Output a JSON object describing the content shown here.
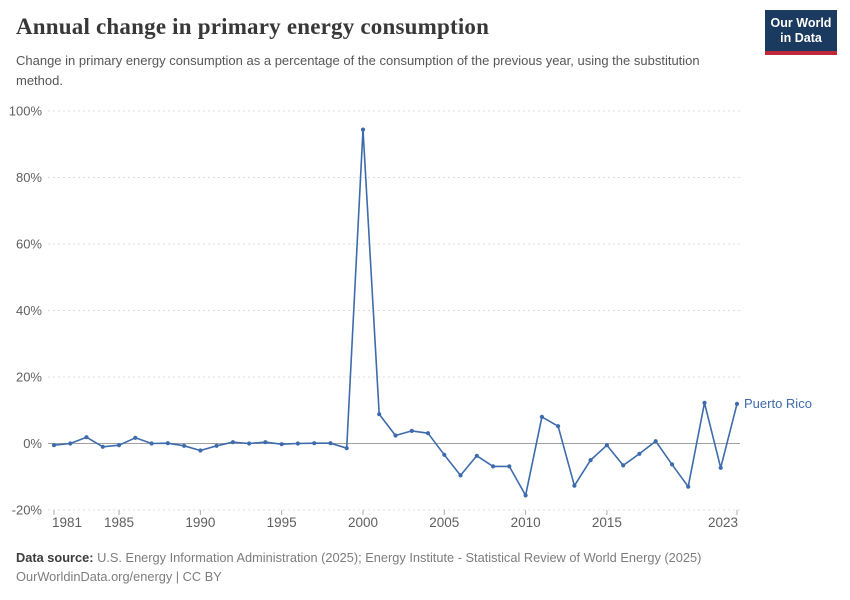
{
  "header": {
    "title": "Annual change in primary energy consumption",
    "subtitle": "Change in primary energy consumption as a percentage of the consumption of the previous year, using the substitution method.",
    "logo": {
      "line1": "Our World",
      "line2": "in Data",
      "bg_color": "#1b3a5f",
      "accent_color": "#c0293c"
    }
  },
  "chart_data": {
    "type": "line",
    "title": "Annual change in primary energy consumption",
    "entity_label": "Puerto Rico",
    "line_color": "#3d6bab",
    "grid": true,
    "legend_position": "end-of-line",
    "xlim": [
      1981,
      2023
    ],
    "ylim": [
      -20,
      100
    ],
    "yticks": [
      100,
      80,
      60,
      40,
      20,
      0,
      -20
    ],
    "ytick_labels": [
      "100%",
      "80%",
      "60%",
      "40%",
      "20%",
      "0%",
      "-20%"
    ],
    "xticks": [
      1981,
      1985,
      1990,
      1995,
      2000,
      2005,
      2010,
      2015,
      2023
    ],
    "xtick_labels": [
      "1981",
      "1985",
      "1990",
      "1995",
      "2000",
      "2005",
      "2010",
      "2015",
      "2023"
    ],
    "x": [
      1981,
      1982,
      1983,
      1984,
      1985,
      1986,
      1987,
      1988,
      1989,
      1990,
      1991,
      1992,
      1993,
      1994,
      1995,
      1996,
      1997,
      1998,
      1999,
      2000,
      2001,
      2002,
      2003,
      2004,
      2005,
      2006,
      2007,
      2008,
      2009,
      2010,
      2011,
      2012,
      2013,
      2014,
      2015,
      2016,
      2017,
      2018,
      2019,
      2020,
      2021,
      2022,
      2023
    ],
    "values": [
      -0.5,
      0.0,
      1.9,
      -1.0,
      -0.5,
      1.7,
      0.0,
      0.1,
      -0.7,
      -2.1,
      -0.7,
      0.4,
      0.0,
      0.4,
      -0.2,
      0.0,
      0.1,
      0.1,
      -1.4,
      94.4,
      8.8,
      2.4,
      3.8,
      3.1,
      -3.4,
      -9.6,
      -3.7,
      -6.9,
      -6.9,
      -15.6,
      8.0,
      5.2,
      -12.7,
      -5.0,
      -0.5,
      -6.6,
      -3.1,
      0.7,
      -6.3,
      -13.0,
      12.2,
      -7.3,
      11.9
    ],
    "colors": {
      "gridline": "#dcdcdc",
      "zero_line": "#a0a0a0",
      "axis_label": "#5f5f5f",
      "tick": "#ababab"
    }
  },
  "footer": {
    "datasource_label": "Data source:",
    "datasource_text": " U.S. Energy Information Administration (2025); Energy Institute - Statistical Review of World Energy (2025)",
    "link_line": "OurWorldinData.org/energy | CC BY"
  }
}
